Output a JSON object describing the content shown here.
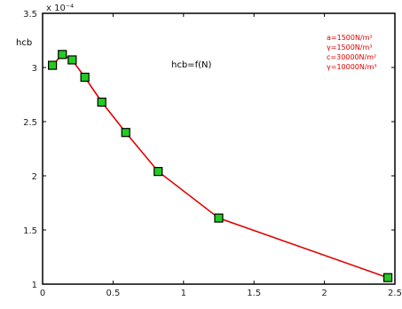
{
  "chart_data": {
    "type": "line",
    "title": "",
    "xlabel": "",
    "ylabel": "hcb",
    "x_tick_labels": [
      "0",
      "0.5",
      "1",
      "1.5",
      "2",
      "2.5"
    ],
    "y_tick_labels": [
      "1",
      "1.5",
      "2",
      "2.5",
      "3",
      "3.5"
    ],
    "y_scale_note": "x 10⁻⁴",
    "xlim": [
      0,
      2.5
    ],
    "ylim": [
      1,
      3.5
    ],
    "annotation": "hcb=f(N)",
    "parameter_lines": [
      "a=1500N/m²",
      "γ=1500N/m³",
      "c=30000N/m²",
      "γ=10000N/m³"
    ],
    "series": [
      {
        "x": [
          0.07,
          0.14,
          0.21,
          0.3,
          0.42,
          0.59,
          0.82,
          1.25,
          2.45
        ],
        "values": [
          3.02,
          3.12,
          3.07,
          2.91,
          2.68,
          2.4,
          2.04,
          1.61,
          1.06
        ],
        "line_color": "#e00000",
        "marker_color": "#22cc22"
      }
    ],
    "grid": false,
    "legend_position": "top-right"
  }
}
